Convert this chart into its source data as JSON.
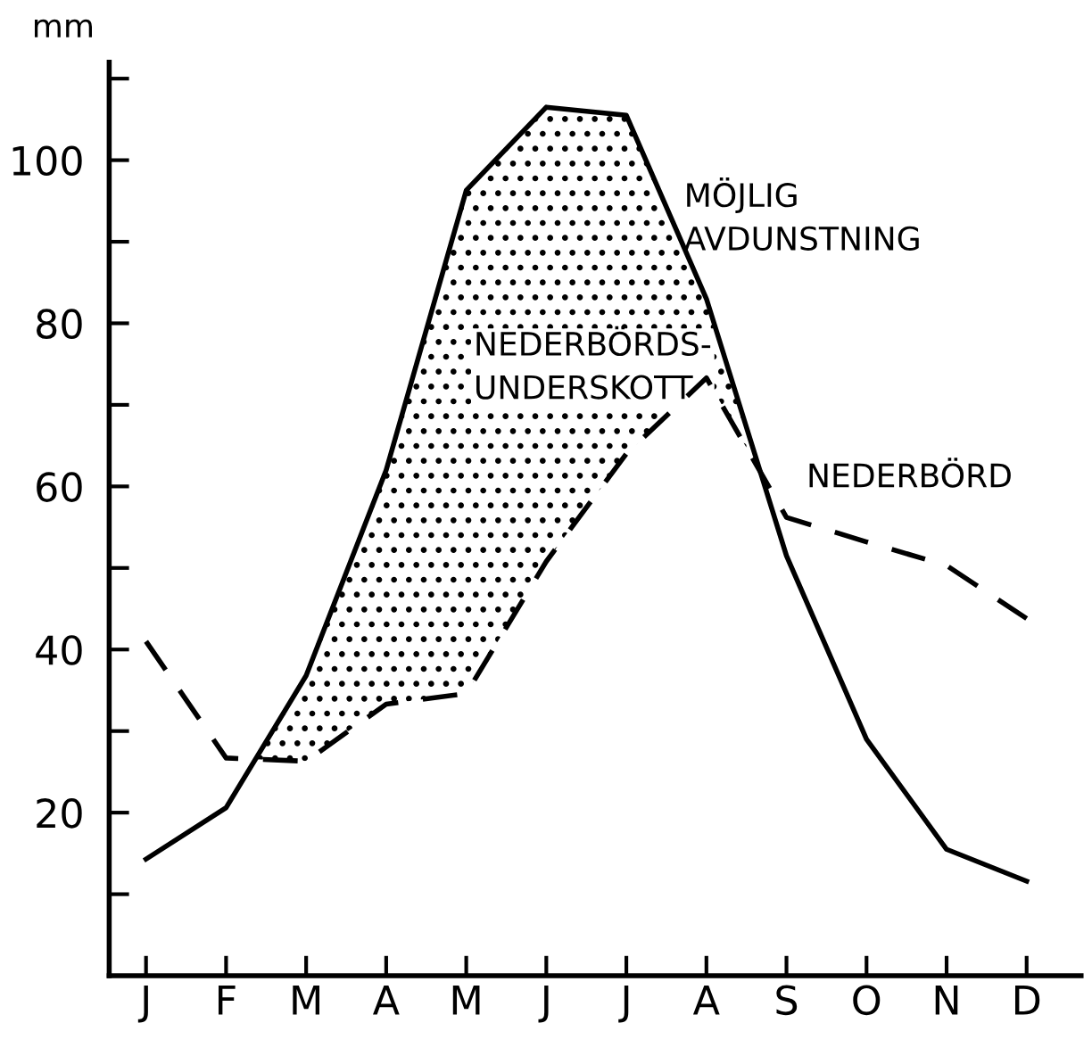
{
  "chart_data": {
    "type": "line",
    "ylabel": "mm",
    "categories": [
      "J",
      "F",
      "M",
      "A",
      "M",
      "J",
      "J",
      "A",
      "S",
      "O",
      "N",
      "D"
    ],
    "series": [
      {
        "name": "MÖJLIG\nAVDUNSTNING",
        "color": "#000000",
        "line_style": "solid",
        "values": [
          14.3,
          20.6,
          36.8,
          62,
          96.3,
          106.5,
          105.5,
          83,
          51.5,
          29,
          15.5,
          11.6
        ]
      },
      {
        "name": "NEDERBÖRD",
        "color": "#000000",
        "line_style": "dashed",
        "values": [
          41,
          26.7,
          26.3,
          33.3,
          34.6,
          50.8,
          64,
          73.3,
          56.2,
          53.2,
          50.3,
          43.8
        ]
      }
    ],
    "annotations": [
      "NEDERBÖRDS-\nUNDERSKOTT"
    ],
    "ylim": [
      0,
      112
    ],
    "yticks": [
      {
        "value": 10,
        "label": null
      },
      20,
      {
        "value": 30,
        "label": null
      },
      40,
      {
        "value": 50,
        "label": null
      },
      60,
      {
        "value": 70,
        "label": null
      },
      80,
      {
        "value": 90,
        "label": null
      },
      100,
      {
        "value": 110,
        "label": null
      }
    ],
    "grid": false,
    "legend": false,
    "marker": "none"
  }
}
